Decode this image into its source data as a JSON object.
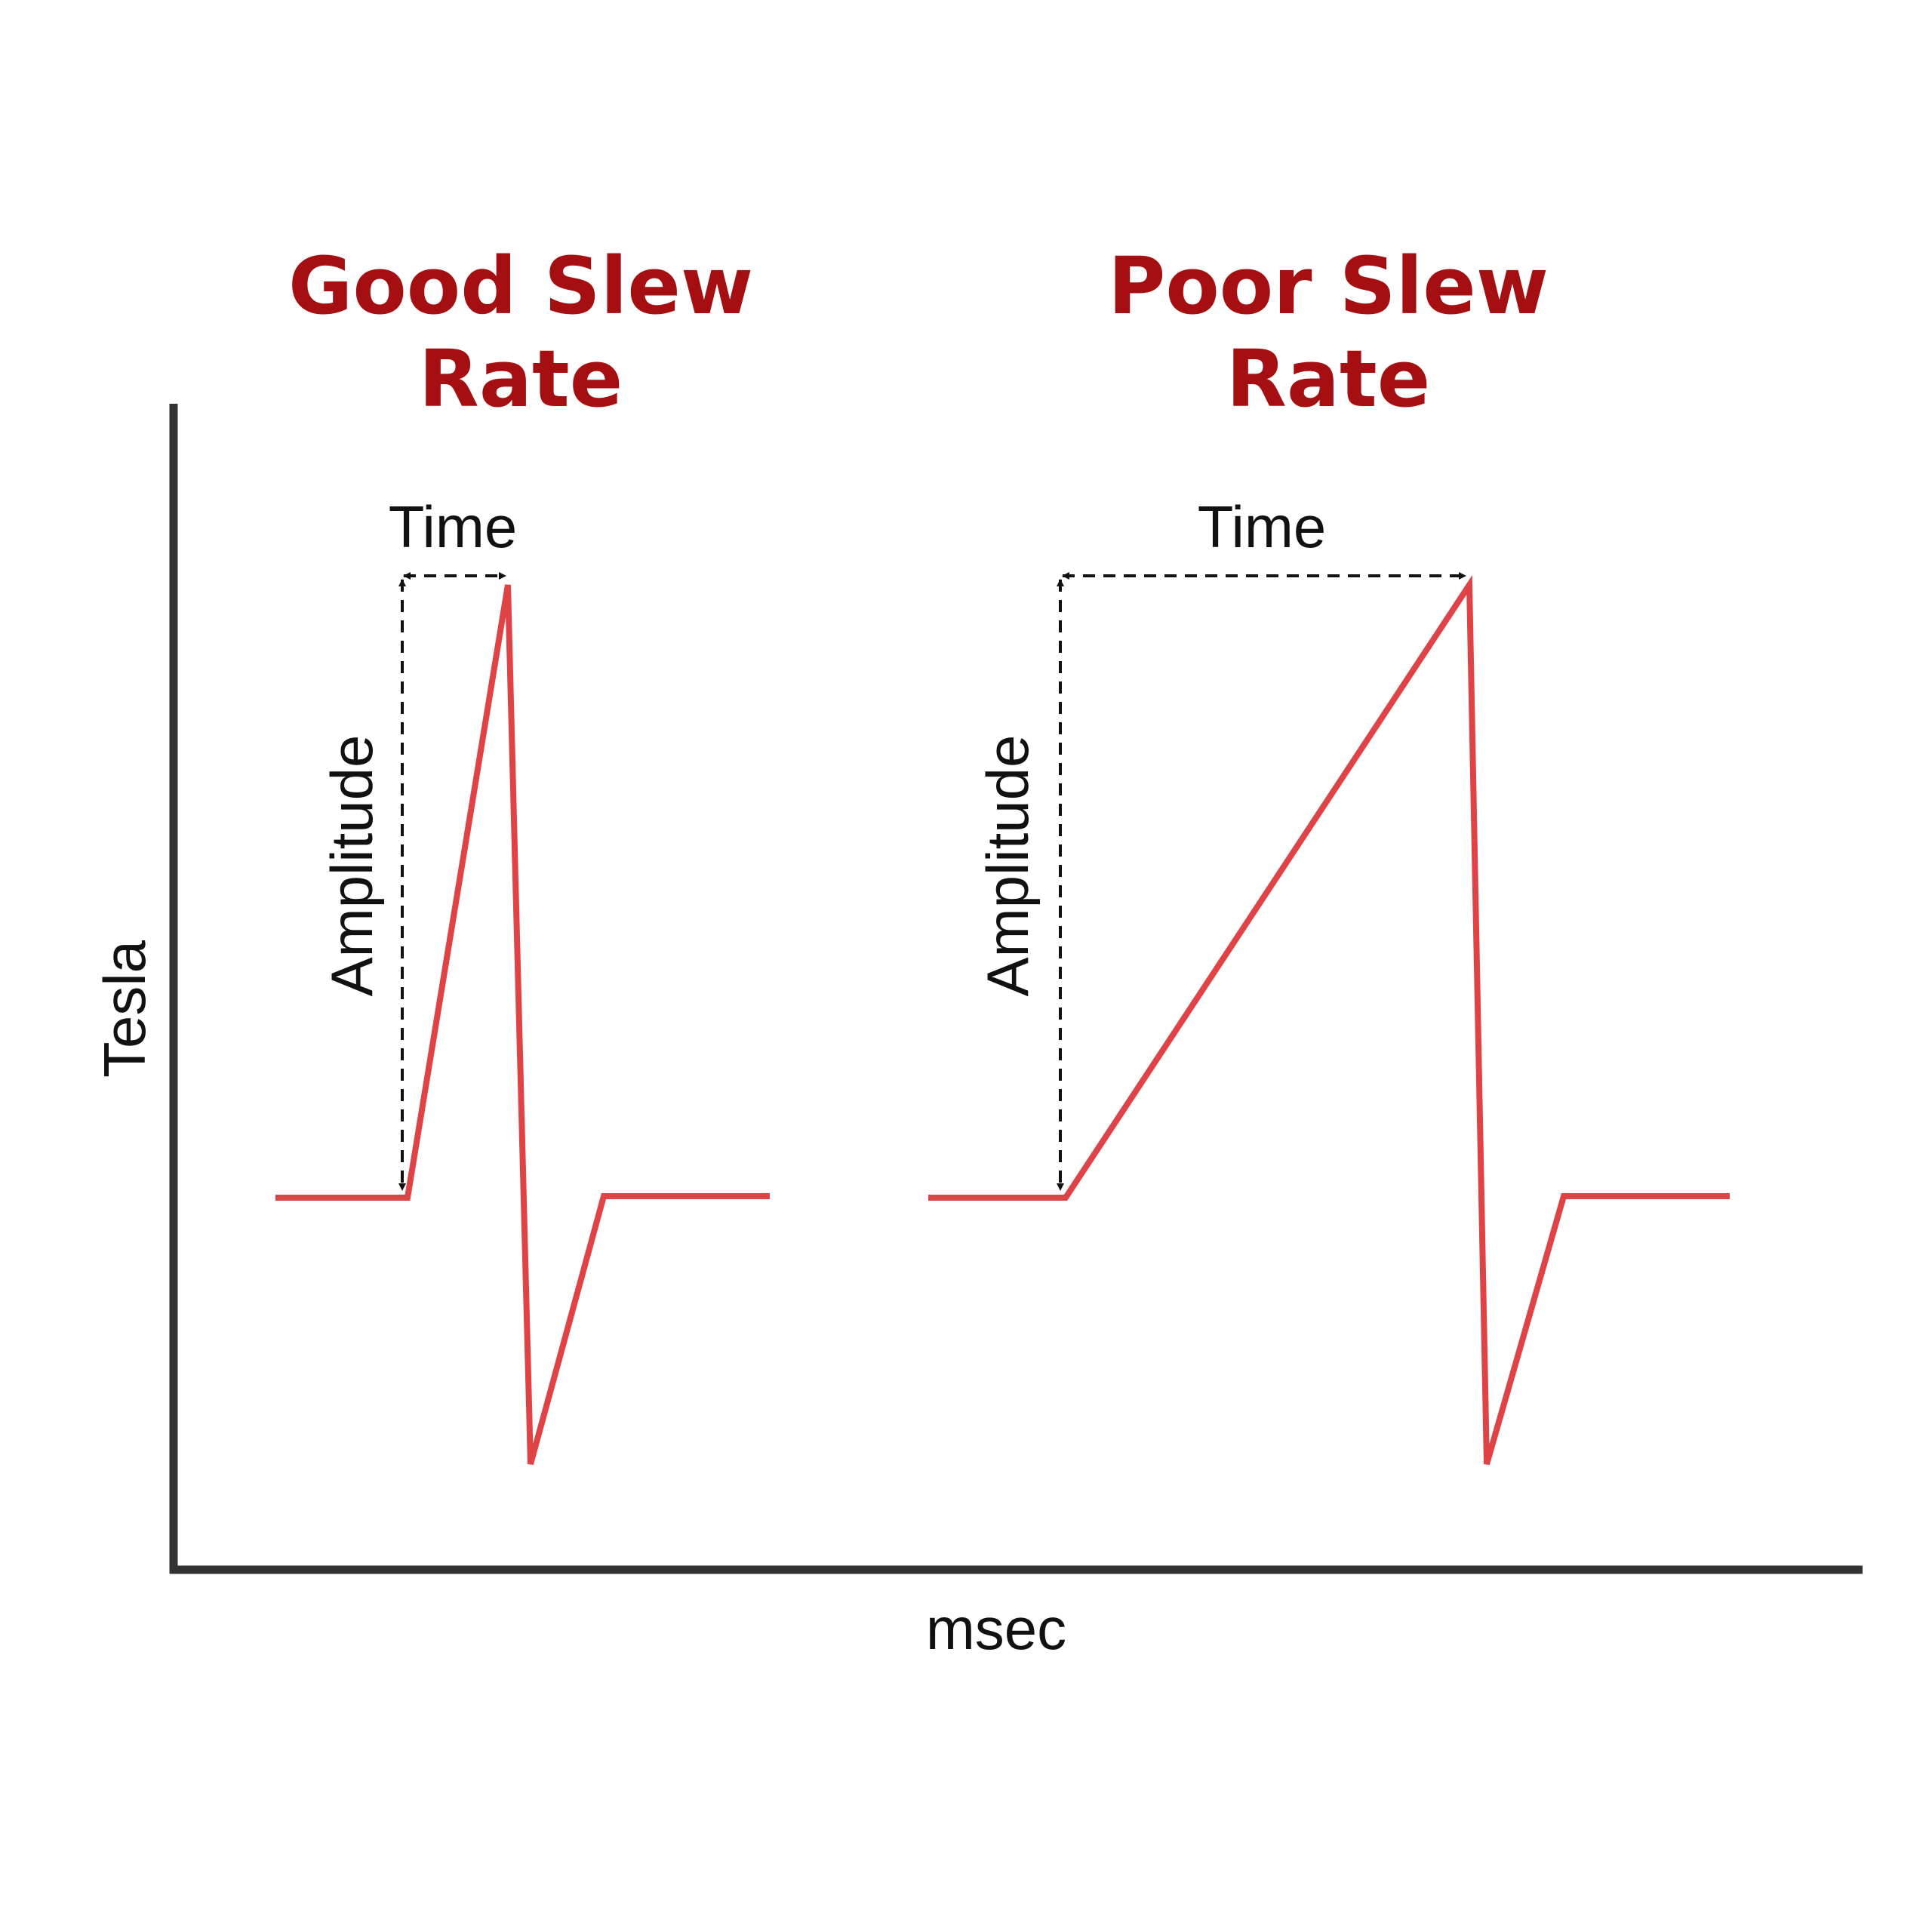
{
  "axes": {
    "y_label": "Tesla",
    "x_label": "msec"
  },
  "panels": [
    {
      "title_line1": "Good Slew",
      "title_line2": "Rate",
      "time_label": "Time",
      "amplitude_label": "Amplitude"
    },
    {
      "title_line1": "Poor Slew",
      "title_line2": "Rate",
      "time_label": "Time",
      "amplitude_label": "Amplitude"
    }
  ],
  "colors": {
    "title": "#a50f11",
    "waveform": "#df4346",
    "axis": "#333333",
    "annotation": "#111111"
  }
}
